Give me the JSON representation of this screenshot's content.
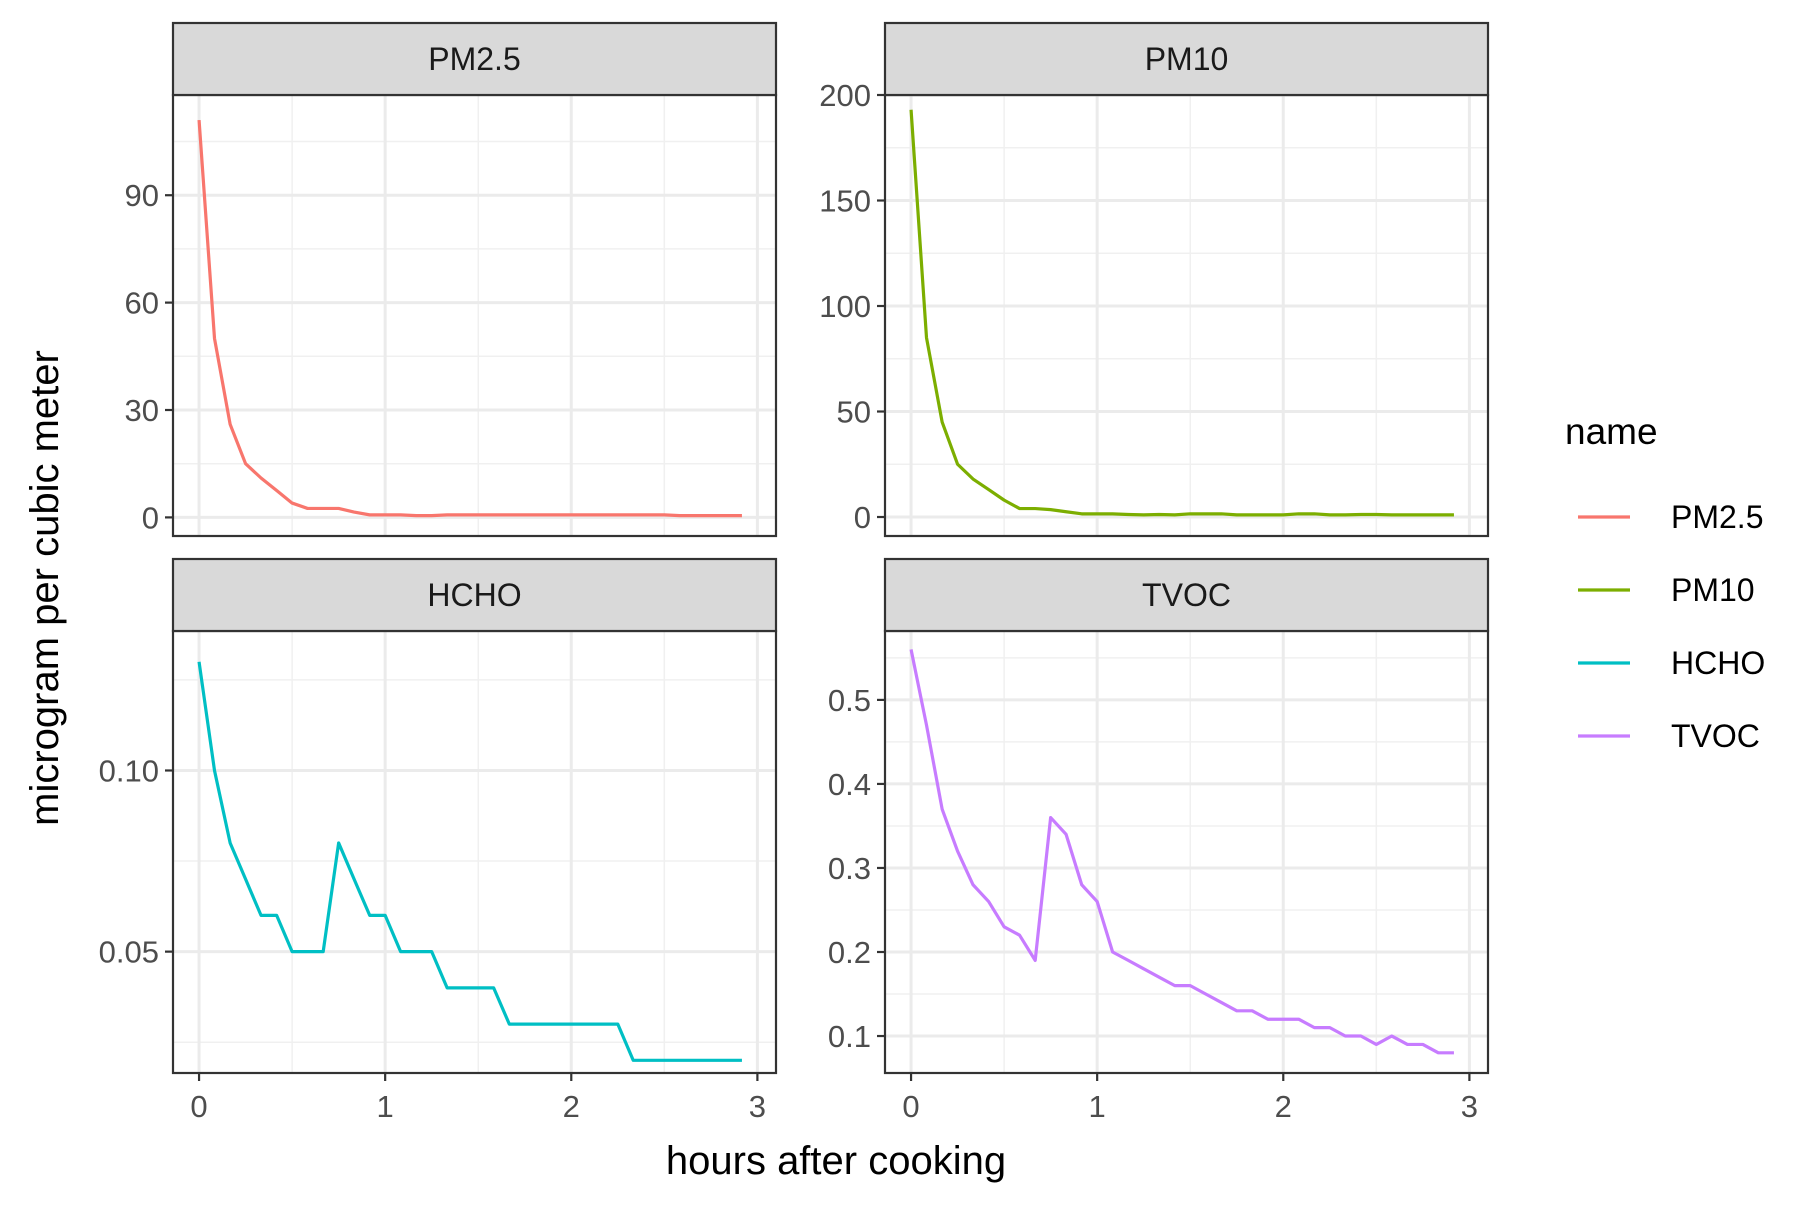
{
  "chart_data": {
    "type": "line",
    "layout": "facet-grid-2x2",
    "xlabel": "hours after cooking",
    "ylabel": "microgram per cubic meter",
    "xlim": [
      -0.14,
      3.1
    ],
    "x_ticks": [
      0,
      1,
      2,
      3
    ],
    "x_tick_labels": [
      "0",
      "1",
      "2",
      "3"
    ],
    "legend": {
      "title": "name",
      "position": "right",
      "entries": [
        {
          "label": "PM2.5",
          "color": "#F8766D"
        },
        {
          "label": "PM10",
          "color": "#7CAE00"
        },
        {
          "label": "HCHO",
          "color": "#00BFC4"
        },
        {
          "label": "TVOC",
          "color": "#C77CFF"
        }
      ]
    },
    "panels": [
      {
        "name": "PM2.5",
        "color": "#F8766D",
        "ylim": [
          -5.2,
          118
        ],
        "y_ticks": [
          0,
          30,
          60,
          90
        ],
        "y_tick_labels": [
          "0",
          "30",
          "60",
          "90"
        ],
        "x": [
          0,
          0.083,
          0.167,
          0.25,
          0.333,
          0.417,
          0.5,
          0.583,
          0.667,
          0.75,
          0.833,
          0.917,
          1.0,
          1.083,
          1.167,
          1.25,
          1.333,
          1.417,
          1.5,
          1.583,
          1.667,
          1.75,
          1.833,
          1.917,
          2.0,
          2.083,
          2.167,
          2.25,
          2.333,
          2.417,
          2.5,
          2.583,
          2.667,
          2.75,
          2.833,
          2.917
        ],
        "y": [
          111,
          50,
          26,
          15,
          11,
          7.5,
          4,
          2.5,
          2.5,
          2.5,
          1.5,
          0.7,
          0.7,
          0.7,
          0.5,
          0.5,
          0.7,
          0.7,
          0.7,
          0.7,
          0.7,
          0.7,
          0.7,
          0.7,
          0.7,
          0.7,
          0.7,
          0.7,
          0.7,
          0.7,
          0.7,
          0.5,
          0.5,
          0.5,
          0.5,
          0.5
        ]
      },
      {
        "name": "PM10",
        "color": "#7CAE00",
        "ylim": [
          -9,
          200
        ],
        "y_ticks": [
          0,
          50,
          100,
          150,
          200
        ],
        "y_tick_labels": [
          "0",
          "50",
          "100",
          "150",
          "200"
        ],
        "x": [
          0,
          0.083,
          0.167,
          0.25,
          0.333,
          0.417,
          0.5,
          0.583,
          0.667,
          0.75,
          0.833,
          0.917,
          1.0,
          1.083,
          1.167,
          1.25,
          1.333,
          1.417,
          1.5,
          1.583,
          1.667,
          1.75,
          1.833,
          1.917,
          2.0,
          2.083,
          2.167,
          2.25,
          2.333,
          2.417,
          2.5,
          2.583,
          2.667,
          2.75,
          2.833,
          2.917
        ],
        "y": [
          193,
          85,
          45,
          25,
          18,
          13,
          8,
          4,
          4,
          3.5,
          2.5,
          1.5,
          1.5,
          1.5,
          1.2,
          1,
          1.2,
          1,
          1.5,
          1.5,
          1.5,
          1,
          1,
          1,
          1,
          1.5,
          1.5,
          1,
          1,
          1.2,
          1.2,
          1,
          1,
          1,
          1,
          1
        ]
      },
      {
        "name": "HCHO",
        "color": "#00BFC4",
        "ylim": [
          0.0165,
          0.1385
        ],
        "y_ticks": [
          0.05,
          0.1
        ],
        "y_tick_labels": [
          "0.05",
          "0.10"
        ],
        "x": [
          0,
          0.083,
          0.167,
          0.25,
          0.333,
          0.417,
          0.5,
          0.583,
          0.667,
          0.75,
          0.833,
          0.917,
          1.0,
          1.083,
          1.167,
          1.25,
          1.333,
          1.417,
          1.5,
          1.583,
          1.667,
          1.75,
          1.833,
          1.917,
          2.0,
          2.083,
          2.167,
          2.25,
          2.333,
          2.417,
          2.5,
          2.583,
          2.667,
          2.75,
          2.833,
          2.917
        ],
        "y": [
          0.13,
          0.1,
          0.08,
          0.07,
          0.06,
          0.06,
          0.05,
          0.05,
          0.05,
          0.08,
          0.07,
          0.06,
          0.06,
          0.05,
          0.05,
          0.05,
          0.04,
          0.04,
          0.04,
          0.04,
          0.03,
          0.03,
          0.03,
          0.03,
          0.03,
          0.03,
          0.03,
          0.03,
          0.02,
          0.02,
          0.02,
          0.02,
          0.02,
          0.02,
          0.02,
          0.02
        ]
      },
      {
        "name": "TVOC",
        "color": "#C77CFF",
        "ylim": [
          0.056,
          0.582
        ],
        "y_ticks": [
          0.1,
          0.2,
          0.3,
          0.4,
          0.5
        ],
        "y_tick_labels": [
          "0.1",
          "0.2",
          "0.3",
          "0.4",
          "0.5"
        ],
        "x": [
          0,
          0.083,
          0.167,
          0.25,
          0.333,
          0.417,
          0.5,
          0.583,
          0.667,
          0.75,
          0.833,
          0.917,
          1.0,
          1.083,
          1.167,
          1.25,
          1.333,
          1.417,
          1.5,
          1.583,
          1.667,
          1.75,
          1.833,
          1.917,
          2.0,
          2.083,
          2.167,
          2.25,
          2.333,
          2.417,
          2.5,
          2.583,
          2.667,
          2.75,
          2.833,
          2.917
        ],
        "y": [
          0.56,
          0.47,
          0.37,
          0.32,
          0.28,
          0.26,
          0.23,
          0.22,
          0.19,
          0.36,
          0.34,
          0.28,
          0.26,
          0.2,
          0.19,
          0.18,
          0.17,
          0.16,
          0.16,
          0.15,
          0.14,
          0.13,
          0.13,
          0.12,
          0.12,
          0.12,
          0.11,
          0.11,
          0.1,
          0.1,
          0.09,
          0.1,
          0.09,
          0.09,
          0.08,
          0.08
        ]
      }
    ]
  }
}
